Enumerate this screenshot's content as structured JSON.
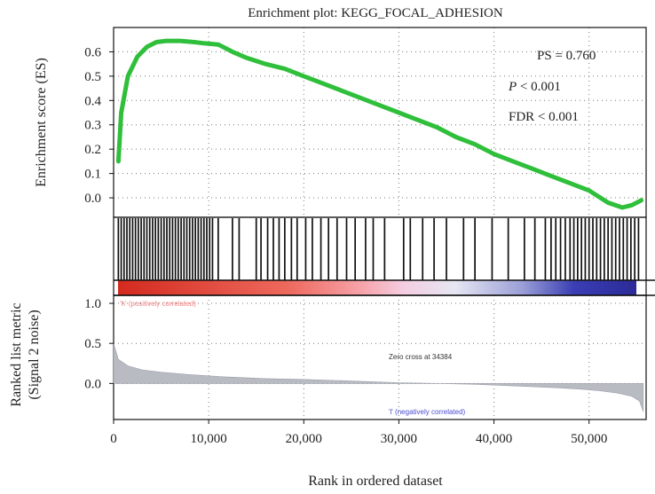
{
  "chart_data": {
    "type": "line",
    "title": "Enrichment plot: KEGG_FOCAL_ADHESION",
    "xlabel": "Rank in ordered dataset",
    "xlim": [
      0,
      56000
    ],
    "x_ticks": [
      "0",
      "10,000",
      "20,000",
      "30,000",
      "40,000",
      "50,000"
    ],
    "x_tick_values": [
      0,
      10000,
      20000,
      30000,
      40000,
      50000
    ],
    "grid": true,
    "es_panel": {
      "ylabel": "Enrichment score (ES)",
      "ylim": [
        -0.08,
        0.7
      ],
      "y_ticks": [
        "0.6",
        "0.5",
        "0.4",
        "0.3",
        "0.2",
        "0.1",
        "0.0"
      ],
      "y_tick_values": [
        0.6,
        0.5,
        0.4,
        0.3,
        0.2,
        0.1,
        0.0
      ],
      "line_color": "#2fbf3a",
      "x": [
        500,
        800,
        1500,
        2500,
        3500,
        4500,
        5500,
        7000,
        8500,
        9500,
        11000,
        12500,
        14000,
        16000,
        18000,
        20000,
        22000,
        24000,
        26000,
        28000,
        30000,
        32000,
        34000,
        36000,
        38000,
        40000,
        42000,
        44000,
        46000,
        48000,
        50000,
        52000,
        53500,
        54500,
        55500
      ],
      "y": [
        0.15,
        0.35,
        0.5,
        0.58,
        0.62,
        0.64,
        0.645,
        0.645,
        0.64,
        0.635,
        0.63,
        0.6,
        0.575,
        0.55,
        0.53,
        0.5,
        0.47,
        0.44,
        0.41,
        0.38,
        0.35,
        0.32,
        0.29,
        0.25,
        0.22,
        0.18,
        0.15,
        0.12,
        0.09,
        0.06,
        0.03,
        -0.02,
        -0.04,
        -0.03,
        -0.01
      ],
      "annotations": [
        {
          "label": "PS",
          "text": "= 0.760"
        },
        {
          "label": "P",
          "text": "< 0.001"
        },
        {
          "label": "FDR",
          "text": "< 0.001"
        }
      ]
    },
    "hits_panel": {
      "hits": [
        500,
        800,
        1100,
        1400,
        1700,
        2000,
        2300,
        2600,
        2900,
        3200,
        3500,
        3800,
        4100,
        4400,
        4700,
        5000,
        5300,
        5600,
        5900,
        6200,
        6500,
        6800,
        7100,
        7400,
        7700,
        8000,
        8300,
        8600,
        8900,
        9200,
        9500,
        9800,
        10100,
        10400,
        11000,
        12500,
        13200,
        15000,
        15500,
        16200,
        16800,
        17400,
        18000,
        18700,
        19300,
        20200,
        20900,
        21800,
        22600,
        23500,
        24500,
        25400,
        26500,
        27300,
        28500,
        30500,
        31200,
        32500,
        33700,
        35000,
        36800,
        38000,
        39800,
        41500,
        43200,
        44300,
        45400,
        46000,
        46500,
        47000,
        47500,
        48000,
        48400,
        48800,
        49200,
        49600,
        50000,
        50400,
        50800,
        51200,
        51600,
        52000,
        52400,
        52800,
        53200,
        53600,
        54000,
        54400,
        54800,
        55200
      ]
    },
    "ranking_panel": {
      "ylabel_line1": "Ranked list metric",
      "ylabel_line2": "(Signal 2 noise)",
      "ylim": [
        -0.45,
        1.1
      ],
      "y_ticks": [
        "1.0",
        "0.5",
        "0.0"
      ],
      "y_tick_values": [
        1.0,
        0.5,
        0.0
      ],
      "fill_color": "#b8bbc2",
      "x": [
        0,
        500,
        1500,
        3000,
        5000,
        8000,
        12000,
        16000,
        20000,
        25000,
        30000,
        34384,
        38000,
        42000,
        46000,
        49000,
        51000,
        53000,
        54500,
        55300,
        55700
      ],
      "y": [
        0.5,
        0.3,
        0.22,
        0.17,
        0.14,
        0.11,
        0.08,
        0.06,
        0.05,
        0.03,
        0.01,
        0.0,
        -0.01,
        -0.03,
        -0.05,
        -0.07,
        -0.09,
        -0.12,
        -0.16,
        -0.22,
        -0.35
      ],
      "positive_label": "'h' (positively correlated)",
      "negative_label": "'l' (negatively correlated)",
      "zero_cross_label": "Zero cross at 34384"
    }
  }
}
